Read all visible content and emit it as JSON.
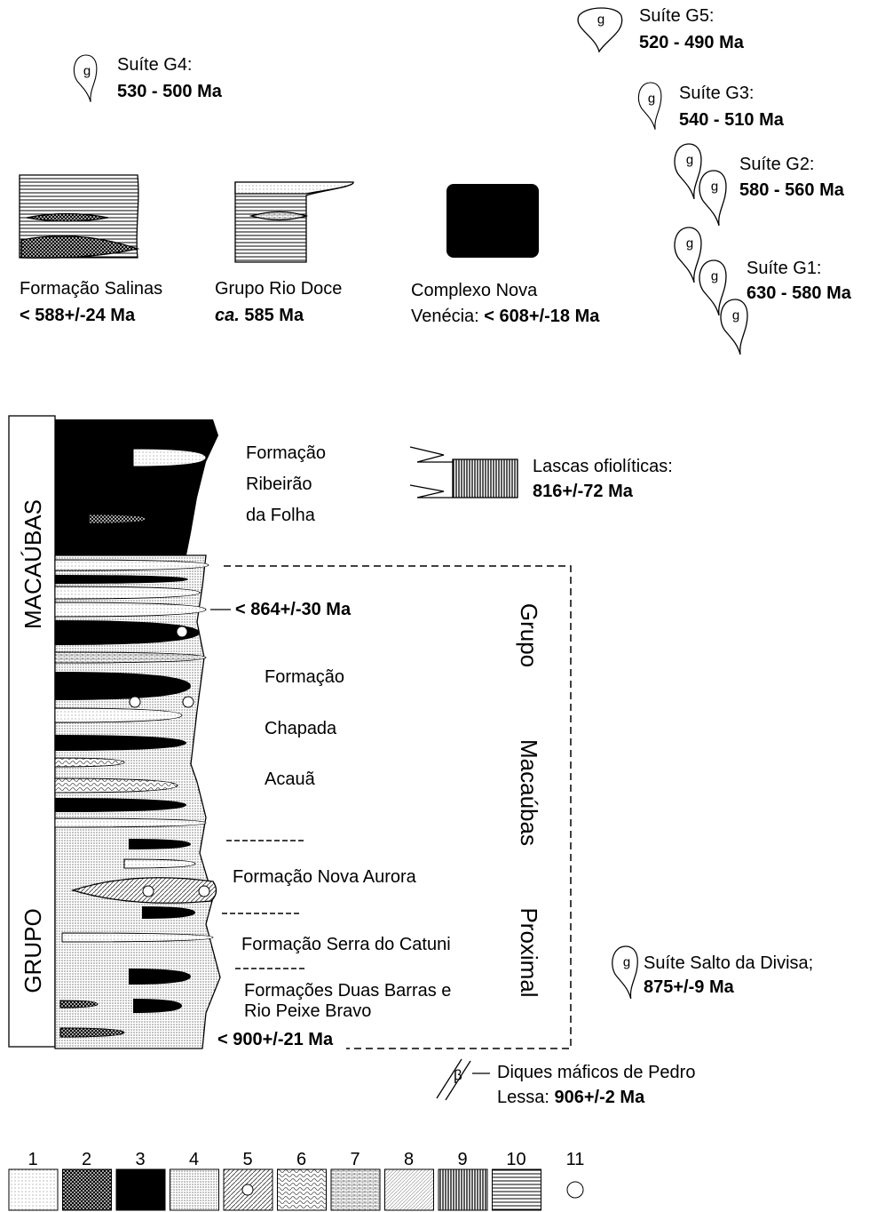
{
  "symbols": {
    "granite": "g",
    "dyke": "β"
  },
  "plutons": [
    {
      "name": "Suíte G5:",
      "age": "520 - 490 Ma"
    },
    {
      "name": "Suíte G4:",
      "age": "530 - 500 Ma"
    },
    {
      "name": "Suíte G3:",
      "age": "540 - 510 Ma"
    },
    {
      "name": "Suíte G2:",
      "age": "580 - 560 Ma"
    },
    {
      "name": "Suíte G1:",
      "age": "630 - 580 Ma"
    }
  ],
  "units": {
    "salinas": {
      "name": "Formação Salinas",
      "age": "< 588+/-24 Ma"
    },
    "rio_doce": {
      "name": "Grupo Rio Doce",
      "prefix": "ca.",
      "age": " 585 Ma"
    },
    "nova_venecia": {
      "line1": "Complexo Nova",
      "line2": "Venécia: ",
      "age": "< 608+/-18 Ma"
    }
  },
  "column": {
    "group_label": [
      "GRUPO",
      "MACAÚBAS"
    ],
    "ribeirao": [
      "Formação",
      "Ribeirão",
      "da Folha"
    ],
    "lascas": {
      "name": "Lascas ofiolíticas:",
      "age": "816+/-72 Ma"
    },
    "age_864": "< 864+/-30 Ma",
    "chapada": [
      "Formação",
      "Chapada",
      "Acauã"
    ],
    "proximal_label": [
      "Grupo",
      "Macaúbas",
      "Proximal"
    ],
    "nova_aurora": "Formação Nova Aurora",
    "serra_catuni": "Formação Serra do Catuni",
    "duas_barras": [
      "Formações Duas Barras e",
      "Rio Peixe Bravo"
    ],
    "age_900": "< 900+/-21 Ma"
  },
  "salto_divisa": {
    "name": "Suíte Salto da Divisa;",
    "age": "875+/-9 Ma"
  },
  "diques": {
    "line1": "Diques máficos de Pedro",
    "line2": "Lessa: ",
    "age": "906+/-2 Ma"
  },
  "legend": [
    "1",
    "2",
    "3",
    "4",
    "5",
    "6",
    "7",
    "8",
    "9",
    "10",
    "11"
  ]
}
